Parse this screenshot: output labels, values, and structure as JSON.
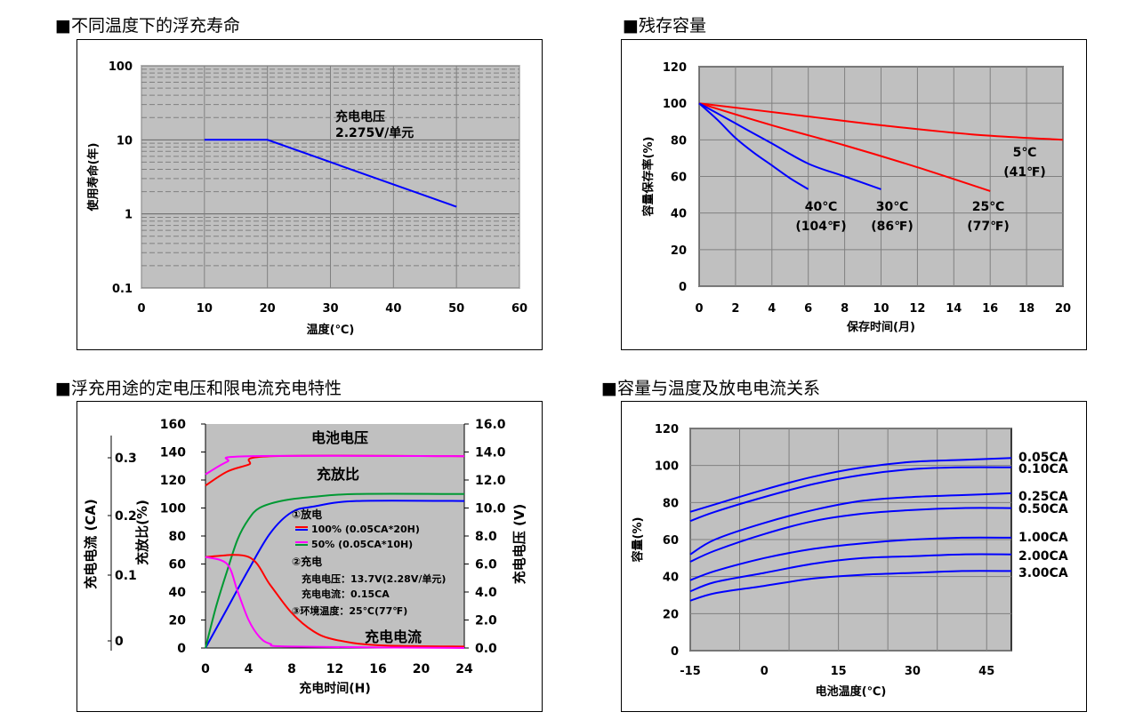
{
  "colors": {
    "plot_bg": "#c0c0c0",
    "red": "#ff0000",
    "blue": "#0000ff",
    "magenta": "#ff00ff",
    "green": "#009933",
    "grid": "#808080"
  },
  "headings": {
    "h1": "■不同温度下的浮充寿命",
    "h2": "■残存容量",
    "h3": "■浮充用途的定电压和限电流充电特性",
    "h4": "■容量与温度及放电电流关系"
  },
  "chart_data": [
    {
      "id": "float-life",
      "type": "line",
      "scale_y": "log",
      "xlabel": "温度(℃)",
      "ylabel": "使用寿命(年)",
      "xlim": [
        0,
        60
      ],
      "ylim": [
        0.1,
        100
      ],
      "x_ticks": [
        "0",
        "10",
        "20",
        "30",
        "40",
        "50",
        "60"
      ],
      "y_ticks": [
        "0.1",
        "1",
        "10",
        "100"
      ],
      "grid": true,
      "annotation": [
        "充电电压",
        "2.275V/单元"
      ],
      "series": [
        {
          "color": "blue",
          "points": [
            [
              10,
              10
            ],
            [
              20,
              10
            ],
            [
              50,
              1.25
            ]
          ]
        }
      ]
    },
    {
      "id": "residual-capacity",
      "type": "line",
      "xlabel": "保存时间(月)",
      "ylabel": "容量保存率(%)",
      "xlim": [
        0,
        20
      ],
      "ylim": [
        0,
        120
      ],
      "x_ticks": [
        "0",
        "2",
        "4",
        "6",
        "8",
        "10",
        "12",
        "14",
        "16",
        "18",
        "20"
      ],
      "y_ticks": [
        "0",
        "20",
        "40",
        "60",
        "80",
        "100",
        "120"
      ],
      "grid": true,
      "series": [
        {
          "name": "5℃\n(41℉)",
          "label_lines": [
            "5℃",
            "(41℉)"
          ],
          "color": "red",
          "points": [
            [
              0,
              100
            ],
            [
              5,
              94
            ],
            [
              10,
              88
            ],
            [
              15,
              83
            ],
            [
              20,
              80
            ]
          ]
        },
        {
          "name": "25℃\n(77℉)",
          "label_lines": [
            "25℃",
            "(77℉)"
          ],
          "color": "red",
          "points": [
            [
              0,
              100
            ],
            [
              4,
              88
            ],
            [
              8,
              77
            ],
            [
              12,
              65
            ],
            [
              16,
              52
            ]
          ]
        },
        {
          "name": "30℃\n(86℉)",
          "label_lines": [
            "30℃",
            "(86℉)"
          ],
          "color": "blue",
          "points": [
            [
              0,
              100
            ],
            [
              2,
              89
            ],
            [
              4,
              78
            ],
            [
              6,
              67
            ],
            [
              8,
              60
            ],
            [
              10,
              53
            ]
          ]
        },
        {
          "name": "40℃\n(104℉)",
          "label_lines": [
            "40℃",
            "(104℉)"
          ],
          "color": "blue",
          "points": [
            [
              0,
              100
            ],
            [
              1,
              91
            ],
            [
              2,
              81
            ],
            [
              3,
              73
            ],
            [
              4,
              66
            ],
            [
              5,
              59
            ],
            [
              6,
              53
            ]
          ]
        }
      ]
    },
    {
      "id": "charge-characteristics",
      "type": "line",
      "xlabel": "充电时间(H)",
      "ylabel_left_outer": "充电电流 (CA)",
      "ylabel_left_inner": "充放比(%)",
      "ylabel_right": "充电电压 (V)",
      "xlim": [
        0,
        24
      ],
      "ylim": [
        0,
        160
      ],
      "y2lim": [
        0,
        16
      ],
      "x_ticks": [
        "0",
        "4",
        "8",
        "12",
        "16",
        "20",
        "24"
      ],
      "y_ticks": [
        "0",
        "20",
        "40",
        "60",
        "80",
        "100",
        "120",
        "140",
        "160"
      ],
      "y2_ticks": [
        "0.0",
        "2.0",
        "4.0",
        "6.0",
        "8.0",
        "10.0",
        "12.0",
        "14.0",
        "16.0"
      ],
      "current_ticks": [
        "0",
        "0.1",
        "0.2",
        "0.3"
      ],
      "grid": false,
      "labels": {
        "voltage": "电池电压",
        "ratio": "充放比",
        "current": "充电电流"
      },
      "legend": {
        "discharge": "①放电",
        "d100": "100% (0.05CA*20H)",
        "d50": "50% (0.05CA*10H)",
        "charge": "②充电",
        "cv": "充电电压：13.7V(2.28V/单元)",
        "cc": "充电电流：0.15CA",
        "temp": "③环境温度：25℃(77℉)"
      },
      "series": [
        {
          "color": "red",
          "role": "voltage-100",
          "points": [
            [
              0,
              11.6
            ],
            [
              2,
              12.6
            ],
            [
              4,
              13.1
            ],
            [
              6,
              13.7
            ],
            [
              24,
              13.7
            ]
          ]
        },
        {
          "color": "magenta",
          "role": "voltage-50",
          "points": [
            [
              0,
              12.4
            ],
            [
              2,
              13.3
            ],
            [
              4,
              13.7
            ],
            [
              24,
              13.7
            ]
          ]
        },
        {
          "color": "blue",
          "role": "ratio-100",
          "points": [
            [
              0,
              0
            ],
            [
              2,
              28
            ],
            [
              4,
              56
            ],
            [
              6,
              82
            ],
            [
              8,
              97
            ],
            [
              10,
              101
            ],
            [
              14,
              105
            ],
            [
              24,
              105
            ]
          ]
        },
        {
          "color": "green",
          "role": "ratio-50",
          "points": [
            [
              0,
              0
            ],
            [
              1,
              30
            ],
            [
              2,
              55
            ],
            [
              3,
              78
            ],
            [
              4,
              92
            ],
            [
              5,
              100
            ],
            [
              7,
              105
            ],
            [
              10,
              108
            ],
            [
              14,
              110
            ],
            [
              24,
              110
            ]
          ]
        },
        {
          "color": "red",
          "role": "current-100",
          "points": [
            [
              0,
              65
            ],
            [
              4,
              65
            ],
            [
              6,
              45
            ],
            [
              8,
              25
            ],
            [
              10,
              12
            ],
            [
              12,
              6
            ],
            [
              16,
              2
            ],
            [
              24,
              1
            ]
          ]
        },
        {
          "color": "magenta",
          "role": "current-50",
          "points": [
            [
              0,
              65
            ],
            [
              2,
              60
            ],
            [
              3,
              40
            ],
            [
              4,
              20
            ],
            [
              5,
              8
            ],
            [
              6,
              3
            ],
            [
              8,
              1
            ],
            [
              24,
              0
            ]
          ]
        }
      ]
    },
    {
      "id": "capacity-temperature",
      "type": "line",
      "xlabel": "电池温度(℃)",
      "ylabel": "容量(%)",
      "xlim": [
        -15,
        50
      ],
      "ylim": [
        0,
        120
      ],
      "x_ticks": [
        "-15",
        "0",
        "15",
        "30",
        "45"
      ],
      "y_ticks": [
        "0",
        "20",
        "40",
        "60",
        "80",
        "100",
        "120"
      ],
      "grid": true,
      "series": [
        {
          "name": "0.05CA",
          "color": "blue",
          "points": [
            [
              -15,
              75
            ],
            [
              -10,
              79
            ],
            [
              0,
              87
            ],
            [
              10,
              94
            ],
            [
              20,
              99
            ],
            [
              30,
              102
            ],
            [
              40,
              103
            ],
            [
              50,
              104
            ]
          ]
        },
        {
          "name": "0.10CA",
          "color": "blue",
          "points": [
            [
              -15,
              70
            ],
            [
              -10,
              75
            ],
            [
              0,
              83
            ],
            [
              10,
              90
            ],
            [
              20,
              95
            ],
            [
              30,
              98
            ],
            [
              40,
              99
            ],
            [
              50,
              99
            ]
          ]
        },
        {
          "name": "0.25CA",
          "color": "blue",
          "points": [
            [
              -15,
              52
            ],
            [
              -10,
              60
            ],
            [
              0,
              69
            ],
            [
              10,
              76
            ],
            [
              20,
              81
            ],
            [
              30,
              83
            ],
            [
              40,
              84
            ],
            [
              50,
              85
            ]
          ]
        },
        {
          "name": "0.50CA",
          "color": "blue",
          "points": [
            [
              -15,
              48
            ],
            [
              -10,
              54
            ],
            [
              0,
              63
            ],
            [
              10,
              70
            ],
            [
              20,
              74
            ],
            [
              30,
              76
            ],
            [
              40,
              77
            ],
            [
              50,
              77
            ]
          ]
        },
        {
          "name": "1.00CA",
          "color": "blue",
          "points": [
            [
              -15,
              38
            ],
            [
              -10,
              43
            ],
            [
              0,
              50
            ],
            [
              10,
              55
            ],
            [
              20,
              58
            ],
            [
              30,
              60
            ],
            [
              40,
              61
            ],
            [
              50,
              61
            ]
          ]
        },
        {
          "name": "2.00CA",
          "color": "blue",
          "points": [
            [
              -15,
              32
            ],
            [
              -10,
              37
            ],
            [
              0,
              42
            ],
            [
              10,
              47
            ],
            [
              20,
              50
            ],
            [
              30,
              51
            ],
            [
              40,
              52
            ],
            [
              50,
              52
            ]
          ]
        },
        {
          "name": "3.00CA",
          "color": "blue",
          "points": [
            [
              -15,
              27
            ],
            [
              -10,
              31
            ],
            [
              0,
              35
            ],
            [
              10,
              39
            ],
            [
              20,
              41
            ],
            [
              30,
              42
            ],
            [
              40,
              43
            ],
            [
              50,
              43
            ]
          ]
        }
      ]
    }
  ]
}
